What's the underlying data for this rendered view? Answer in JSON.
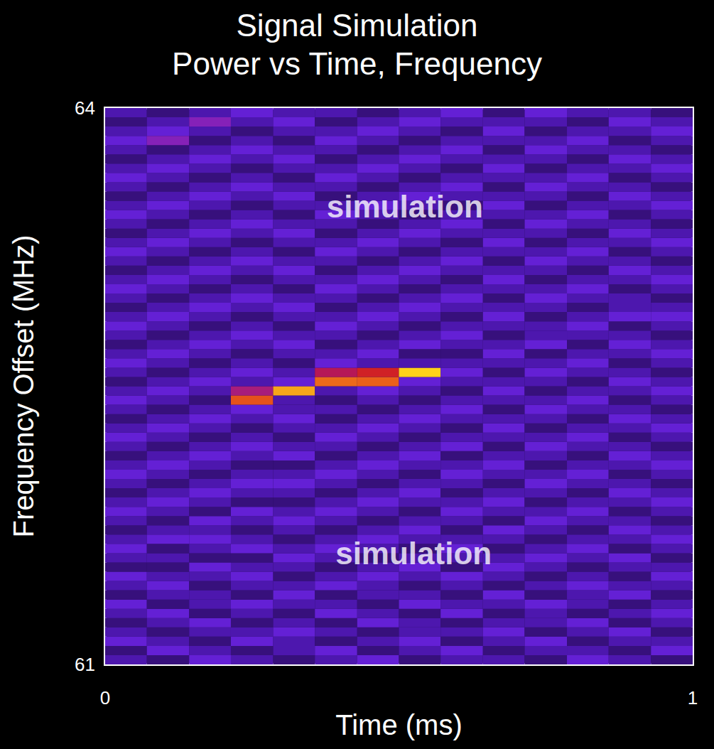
{
  "chart_data": {
    "type": "heatmap",
    "title": "Signal Simulation",
    "subtitle": "Power vs Time, Frequency",
    "x_label": "Time (ms)",
    "y_label": "Frequency Offset (MHz)",
    "xlim": [
      0,
      1
    ],
    "xticks": [
      0,
      1
    ],
    "ylim": [
      61,
      64
    ],
    "yticks": [
      61,
      64
    ],
    "x_bins": [
      0,
      0.071,
      0.143,
      0.214,
      0.286,
      0.357,
      0.429,
      0.5,
      0.571,
      0.643,
      0.714,
      0.786,
      0.857,
      0.929,
      1
    ],
    "y_bins": [
      61,
      61.05,
      61.1,
      61.15,
      61.2,
      61.25,
      61.3,
      61.35,
      61.4,
      61.45,
      61.5,
      61.55,
      61.6,
      61.65,
      61.7,
      61.75,
      61.8,
      61.85,
      61.9,
      61.95,
      62,
      62.05,
      62.1,
      62.15,
      62.2,
      62.25,
      62.3,
      62.35,
      62.4,
      62.45,
      62.5,
      62.55,
      62.6,
      62.65,
      62.7,
      62.75,
      62.8,
      62.85,
      62.9,
      62.95,
      63,
      63.05,
      63.1,
      63.15,
      63.2,
      63.25,
      63.3,
      63.35,
      63.4,
      63.45,
      63.5,
      63.55,
      63.6,
      63.65,
      63.7,
      63.75,
      63.8,
      63.85,
      63.9,
      63.95,
      64
    ],
    "zlim": [
      0,
      10
    ],
    "power": [
      [
        3,
        2,
        4,
        3,
        2,
        3,
        4,
        2,
        3,
        3,
        2,
        4,
        3,
        2
      ],
      [
        2,
        4,
        3,
        2,
        3,
        4,
        2,
        3,
        4,
        2,
        3,
        3,
        2,
        4
      ],
      [
        4,
        3,
        2,
        4,
        3,
        2,
        3,
        4,
        2,
        3,
        4,
        2,
        3,
        3
      ],
      [
        3,
        2,
        3,
        3,
        4,
        3,
        2,
        3,
        3,
        4,
        2,
        3,
        4,
        2
      ],
      [
        2,
        3,
        4,
        2,
        3,
        2,
        4,
        3,
        2,
        3,
        3,
        4,
        2,
        3
      ],
      [
        3,
        4,
        2,
        3,
        2,
        4,
        3,
        2,
        4,
        2,
        3,
        2,
        3,
        4
      ],
      [
        4,
        2,
        3,
        4,
        3,
        3,
        2,
        4,
        3,
        3,
        4,
        3,
        2,
        3
      ],
      [
        2,
        3,
        3,
        2,
        4,
        2,
        3,
        3,
        2,
        4,
        2,
        3,
        4,
        2
      ],
      [
        3,
        4,
        2,
        3,
        3,
        4,
        3,
        2,
        3,
        2,
        3,
        4,
        3,
        3
      ],
      [
        4,
        3,
        3,
        4,
        2,
        3,
        4,
        3,
        4,
        3,
        2,
        3,
        2,
        4
      ],
      [
        2,
        2,
        4,
        3,
        3,
        2,
        3,
        4,
        2,
        4,
        3,
        2,
        3,
        3
      ],
      [
        3,
        3,
        2,
        2,
        4,
        3,
        2,
        3,
        3,
        3,
        4,
        3,
        4,
        2
      ],
      [
        4,
        2,
        3,
        4,
        3,
        4,
        3,
        2,
        4,
        2,
        3,
        4,
        2,
        3
      ],
      [
        3,
        4,
        4,
        3,
        2,
        3,
        4,
        3,
        3,
        3,
        2,
        3,
        3,
        4
      ],
      [
        2,
        3,
        3,
        2,
        3,
        2,
        3,
        4,
        2,
        4,
        3,
        2,
        4,
        3
      ],
      [
        3,
        2,
        4,
        3,
        4,
        3,
        2,
        3,
        3,
        2,
        4,
        3,
        3,
        2
      ],
      [
        4,
        3,
        2,
        4,
        3,
        4,
        3,
        2,
        4,
        3,
        3,
        4,
        2,
        3
      ],
      [
        3,
        4,
        3,
        2,
        2,
        3,
        4,
        3,
        3,
        4,
        2,
        3,
        3,
        4
      ],
      [
        2,
        3,
        4,
        3,
        3,
        2,
        3,
        4,
        2,
        3,
        3,
        2,
        4,
        3
      ],
      [
        3,
        2,
        3,
        4,
        4,
        3,
        2,
        3,
        3,
        2,
        4,
        3,
        3,
        2
      ],
      [
        4,
        3,
        2,
        3,
        3,
        4,
        3,
        2,
        4,
        3,
        3,
        4,
        2,
        3
      ],
      [
        3,
        4,
        3,
        2,
        2,
        3,
        4,
        3,
        3,
        4,
        2,
        3,
        3,
        4
      ],
      [
        2,
        3,
        4,
        3,
        4,
        2,
        3,
        4,
        2,
        3,
        3,
        2,
        4,
        3
      ],
      [
        3,
        2,
        3,
        4,
        3,
        3,
        2,
        3,
        4,
        2,
        4,
        3,
        3,
        2
      ],
      [
        4,
        3,
        2,
        3,
        2,
        4,
        3,
        2,
        3,
        3,
        3,
        4,
        2,
        3
      ],
      [
        3,
        4,
        3,
        2,
        3,
        3,
        4,
        3,
        2,
        4,
        2,
        3,
        3,
        4
      ],
      [
        2,
        3,
        4,
        3,
        4,
        2,
        3,
        4,
        3,
        3,
        3,
        2,
        4,
        3
      ],
      [
        3,
        2,
        3,
        4,
        3,
        3,
        2,
        3,
        4,
        2,
        4,
        3,
        3,
        2
      ],
      [
        4,
        3,
        2,
        8.5,
        3,
        2,
        3,
        2,
        3,
        3,
        3,
        4,
        2,
        3
      ],
      [
        3,
        4,
        3,
        6,
        9.5,
        3,
        4,
        3,
        2,
        4,
        2,
        3,
        3,
        4
      ],
      [
        2,
        3,
        4,
        3,
        4,
        8.8,
        8.7,
        4,
        3,
        3,
        3,
        2,
        4,
        3
      ],
      [
        3,
        2,
        3,
        4,
        3,
        6.5,
        7.5,
        10,
        4,
        2,
        4,
        3,
        3,
        2
      ],
      [
        4,
        3,
        2,
        3,
        2,
        4,
        3,
        3,
        3,
        3,
        3,
        4,
        2,
        3
      ],
      [
        3,
        4,
        3,
        2,
        3,
        3,
        4,
        2,
        2,
        4,
        2,
        3,
        3,
        4
      ],
      [
        2,
        3,
        4,
        3,
        4,
        2,
        3,
        4,
        3,
        3,
        4,
        2,
        4,
        3
      ],
      [
        3,
        2,
        3,
        4,
        3,
        3,
        2,
        3,
        4,
        2,
        3,
        3,
        3,
        2
      ],
      [
        4,
        3,
        2,
        3,
        2,
        4,
        3,
        2,
        3,
        3,
        3,
        4,
        2,
        3
      ],
      [
        3,
        4,
        3,
        2,
        3,
        3,
        4,
        3,
        2,
        4,
        2,
        3,
        4,
        4
      ],
      [
        2,
        3,
        4,
        3,
        4,
        2,
        3,
        4,
        3,
        3,
        3,
        2,
        3,
        3
      ],
      [
        3,
        2,
        3,
        4,
        3,
        3,
        2,
        3,
        4,
        2,
        4,
        3,
        3,
        2
      ],
      [
        4,
        3,
        2,
        3,
        2,
        4,
        3,
        2,
        3,
        3,
        3,
        4,
        2,
        3
      ],
      [
        3,
        4,
        3,
        2,
        3,
        3,
        4,
        3,
        2,
        4,
        2,
        3,
        3,
        4
      ],
      [
        2,
        3,
        4,
        3,
        4,
        2,
        3,
        4,
        3,
        3,
        3,
        2,
        4,
        3
      ],
      [
        3,
        2,
        3,
        4,
        3,
        3,
        2,
        3,
        4,
        2,
        4,
        3,
        3,
        2
      ],
      [
        4,
        3,
        2,
        3,
        2,
        4,
        3,
        2,
        3,
        3,
        3,
        4,
        2,
        3
      ],
      [
        3,
        4,
        3,
        2,
        3,
        3,
        4,
        3,
        2,
        4,
        2,
        3,
        3,
        4
      ],
      [
        2,
        3,
        4,
        3,
        4,
        2,
        3,
        4,
        3,
        3,
        3,
        2,
        4,
        3
      ],
      [
        3,
        2,
        3,
        4,
        3,
        3,
        2,
        3,
        4,
        2,
        4,
        3,
        3,
        2
      ],
      [
        4,
        3,
        2,
        3,
        2,
        4,
        3,
        2,
        3,
        3,
        3,
        4,
        2,
        3
      ],
      [
        3,
        4,
        3,
        2,
        3,
        3,
        4,
        3,
        2,
        4,
        2,
        3,
        3,
        4
      ],
      [
        2,
        3,
        4,
        3,
        4,
        2,
        3,
        4,
        3,
        3,
        3,
        2,
        4,
        3
      ],
      [
        3,
        2,
        3,
        4,
        3,
        3,
        2,
        3,
        4,
        2,
        4,
        3,
        3,
        2
      ],
      [
        4,
        3,
        2,
        3,
        2,
        4,
        3,
        2,
        3,
        3,
        3,
        4,
        2,
        3
      ],
      [
        3,
        4,
        3,
        2,
        3,
        3,
        4,
        3,
        2,
        4,
        2,
        3,
        3,
        4
      ],
      [
        2,
        3,
        4,
        3,
        4,
        2,
        3,
        4,
        3,
        3,
        3,
        2,
        4,
        3
      ],
      [
        3,
        2,
        3,
        4,
        3,
        3,
        2,
        3,
        4,
        2,
        4,
        3,
        3,
        2
      ],
      [
        4,
        5,
        2,
        3,
        2,
        4,
        3,
        2,
        3,
        3,
        3,
        4,
        2,
        3
      ],
      [
        3,
        4,
        3,
        2,
        3,
        3,
        4,
        3,
        2,
        4,
        2,
        3,
        3,
        4
      ],
      [
        2,
        3,
        5,
        3,
        4,
        2,
        3,
        4,
        3,
        3,
        3,
        2,
        4,
        3
      ],
      [
        3,
        2,
        3,
        4,
        3,
        3,
        2,
        3,
        4,
        2,
        4,
        3,
        3,
        2
      ]
    ],
    "annotations": [
      {
        "text": "simulation",
        "x": 0.51,
        "y": 63.47
      },
      {
        "text": "simulation",
        "x": 0.525,
        "y": 61.6
      }
    ]
  }
}
